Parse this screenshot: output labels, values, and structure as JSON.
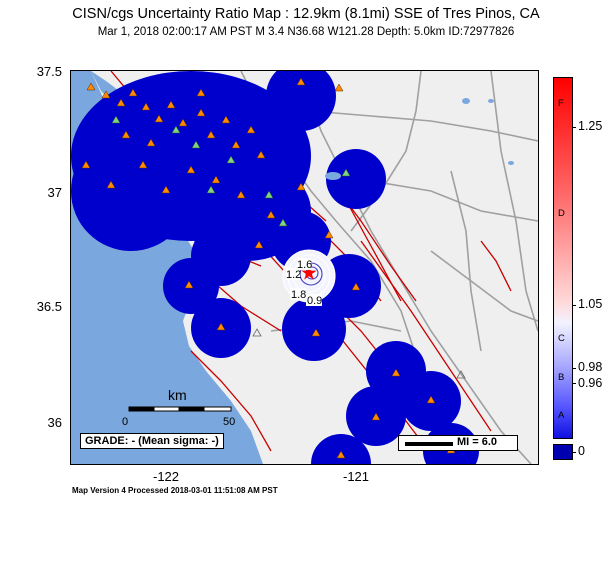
{
  "title": "CISN/cgs Uncertainty Ratio Map : 12.9km (8.1mi) SSE of Tres Pinos, CA",
  "subtitle": "Mar  1, 2018 02:00:17 AM PST   M 3.4   N36.68 W121.28   Depth: 5.0km   ID:72977826",
  "lat_labels": [
    "37.5",
    "37",
    "36.5",
    "36"
  ],
  "lon_labels": [
    "-122",
    "-121"
  ],
  "colorbar": {
    "grades": [
      "F",
      "D",
      "C",
      "B",
      "A"
    ],
    "values": [
      "1.25",
      "1.05",
      "0.98",
      "0.96",
      "0"
    ]
  },
  "scale": {
    "unit": "km",
    "start": "0",
    "end": "50"
  },
  "grade_box": "GRADE: - (Mean sigma: -)",
  "mi_legend": "MI = 6.0",
  "contour_labels": [
    "1.6",
    "1.2",
    "1.8",
    "0.9"
  ],
  "footer": "Map Version 4 Processed 2018-03-01 11:51:08 AM PST",
  "colors": {
    "uncertainty_blue": "#0000cc",
    "ocean": "#7aa7dd",
    "land": "#efefef",
    "faults": "#c80000",
    "roads": "#a0a0a0",
    "station_orange": "#ff8a00",
    "station_green": "#7fd27f"
  }
}
